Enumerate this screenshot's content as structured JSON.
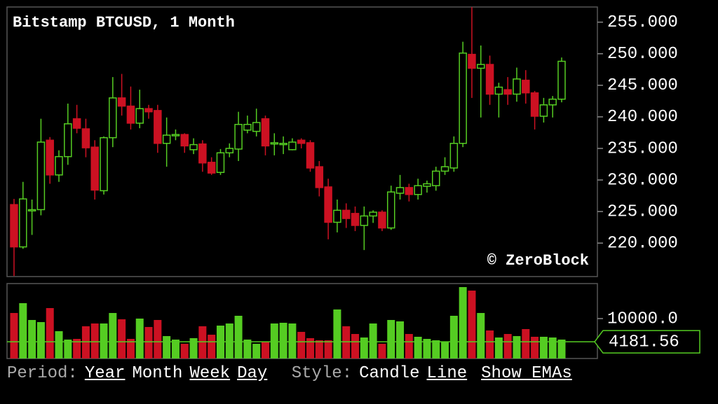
{
  "chart_data": [
    {
      "type": "candlestick",
      "title": "Bitstamp BTCUSD, 1 Month",
      "watermark": "© ZeroBlock",
      "up_color": "#55cc22",
      "down_color": "#cc1122",
      "ylim": [
        214.7,
        257.4
      ],
      "yticks": [
        {
          "value": 220,
          "label": "220.000"
        },
        {
          "value": 225,
          "label": "225.000"
        },
        {
          "value": 230,
          "label": "230.000"
        },
        {
          "value": 235,
          "label": "235.000"
        },
        {
          "value": 240,
          "label": "240.000"
        },
        {
          "value": 245,
          "label": "245.000"
        },
        {
          "value": 250,
          "label": "250.000"
        },
        {
          "value": 255,
          "label": "255.000"
        }
      ],
      "open": [
        226.1,
        219.4,
        225.1,
        225.3,
        236.3,
        230.8,
        233.7,
        239.7,
        238.1,
        235.2,
        228.3,
        236.7,
        243.0,
        241.7,
        239.0,
        241.3,
        241.0,
        235.8,
        237.0,
        237.2,
        234.8,
        235.7,
        232.8,
        231.2,
        234.3,
        234.9,
        237.9,
        237.7,
        239.7,
        235.7,
        235.6,
        234.8,
        236.3,
        235.9,
        232.1,
        228.9,
        223.3,
        225.2,
        224.7,
        222.8,
        224.3,
        224.9,
        222.4,
        227.9,
        228.8,
        227.7,
        229.0,
        229.1,
        231.4,
        231.9,
        235.8,
        249.9,
        247.7,
        248.3,
        243.6,
        244.3,
        243.6,
        245.8,
        243.8,
        240.1,
        241.9,
        242.8
      ],
      "high": [
        227.0,
        229.7,
        226.9,
        239.7,
        236.8,
        234.7,
        242.1,
        241.9,
        239.7,
        236.3,
        236.9,
        246.3,
        246.8,
        244.8,
        244.3,
        241.9,
        241.9,
        239.9,
        238.0,
        237.4,
        236.6,
        236.3,
        233.6,
        234.9,
        235.8,
        240.8,
        240.2,
        241.3,
        240.2,
        237.4,
        236.9,
        236.6,
        236.6,
        236.3,
        233.0,
        230.2,
        226.9,
        226.3,
        225.8,
        225.8,
        225.2,
        225.2,
        229.1,
        230.8,
        229.4,
        230.2,
        229.9,
        232.1,
        233.6,
        236.9,
        251.9,
        257.4,
        251.3,
        249.7,
        245.4,
        246.3,
        247.8,
        247.4,
        244.1,
        243.0,
        243.3,
        249.4
      ],
      "low": [
        214.8,
        219.1,
        221.3,
        224.4,
        229.4,
        229.7,
        232.4,
        237.4,
        233.6,
        226.9,
        227.7,
        235.2,
        240.2,
        238.0,
        238.2,
        239.7,
        234.3,
        232.1,
        236.3,
        234.3,
        234.1,
        231.3,
        230.8,
        230.8,
        233.6,
        233.0,
        237.4,
        236.9,
        233.9,
        233.9,
        234.1,
        234.7,
        235.0,
        231.3,
        227.4,
        220.6,
        221.7,
        222.4,
        221.9,
        218.9,
        223.2,
        221.9,
        222.1,
        226.9,
        226.6,
        226.9,
        228.0,
        228.3,
        230.8,
        231.3,
        235.2,
        243.0,
        239.9,
        241.9,
        239.9,
        241.9,
        242.4,
        242.1,
        238.0,
        239.1,
        239.9,
        242.3
      ],
      "close": [
        219.4,
        227.0,
        225.3,
        236.0,
        230.8,
        233.7,
        238.9,
        238.2,
        235.1,
        228.4,
        236.7,
        243.0,
        241.7,
        239.0,
        241.3,
        240.8,
        235.8,
        237.1,
        237.2,
        235.4,
        235.6,
        232.7,
        231.1,
        234.3,
        235.0,
        238.8,
        238.8,
        239.1,
        235.4,
        235.9,
        235.8,
        236.0,
        235.8,
        231.9,
        228.8,
        223.3,
        225.2,
        223.9,
        222.8,
        224.3,
        224.9,
        222.4,
        228.1,
        228.8,
        227.7,
        229.1,
        229.4,
        231.4,
        232.1,
        235.8,
        250.1,
        247.7,
        248.3,
        243.6,
        244.7,
        243.6,
        246.0,
        243.8,
        240.1,
        241.9,
        242.8,
        248.8
      ]
    },
    {
      "type": "volume",
      "ylim": [
        0,
        18770
      ],
      "yticks": [
        {
          "value": 10000,
          "label": "10000.0"
        }
      ],
      "current": 4181.56,
      "current_color": "#55cc22",
      "values": [
        11400,
        13860,
        9650,
        9120,
        12630,
        6840,
        4740,
        4910,
        8070,
        8770,
        8770,
        11400,
        9820,
        4910,
        10000,
        7890,
        9650,
        5610,
        4740,
        3680,
        5090,
        8070,
        5960,
        8240,
        8770,
        10700,
        4740,
        3680,
        4210,
        8770,
        8950,
        8770,
        6670,
        5090,
        4560,
        4560,
        12280,
        8070,
        6140,
        5260,
        8770,
        3680,
        9650,
        9300,
        6140,
        5440,
        4910,
        4560,
        4210,
        10700,
        17890,
        17010,
        11400,
        7020,
        5260,
        6140,
        5610,
        7370,
        5440,
        5440,
        5260,
        4740
      ]
    }
  ],
  "controls": {
    "period_label": "Period:",
    "periods": [
      "Year",
      "Month",
      "Week",
      "Day"
    ],
    "active_period": 1,
    "style_label": "Style:",
    "styles": [
      "Candle",
      "Line"
    ],
    "active_style": 0,
    "ema_toggle": "Show EMAs"
  }
}
